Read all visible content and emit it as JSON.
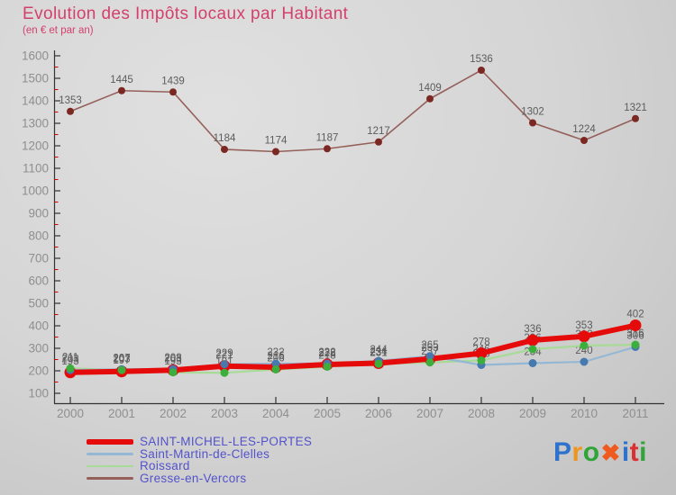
{
  "header": {
    "title": "Evolution des Impôts locaux par Habitant",
    "subtitle": "(en € et par an)"
  },
  "chart_data": {
    "type": "line",
    "x": [
      2000,
      2001,
      2002,
      2003,
      2004,
      2005,
      2006,
      2007,
      2008,
      2009,
      2010,
      2011
    ],
    "series": [
      {
        "name": "SAINT-MICHEL-LES-PORTES",
        "color": "#e60b0b",
        "marker_color": "#e60b0b",
        "width": 6,
        "marker_r": 6.5,
        "values": [
          193,
          197,
          203,
          221,
          216,
          228,
          234,
          253,
          278,
          336,
          353,
          402
        ]
      },
      {
        "name": "Saint-Martin-de-Clelles",
        "color": "#94b8d4",
        "marker_color": "#4679ad",
        "width": 2.2,
        "marker_r": 4.5,
        "values": [
          203,
          207,
          208,
          229,
          232,
          232,
          244,
          265,
          226,
          234,
          240,
          306
        ]
      },
      {
        "name": "Roissard",
        "color": "#a8da98",
        "marker_color": "#3cae3c",
        "width": 2.2,
        "marker_r": 4.5,
        "values": [
          211,
          203,
          193,
          191,
          206,
          218,
          231,
          237,
          246,
          296,
          312,
          316
        ]
      },
      {
        "name": "Gresse-en-Vercors",
        "color": "#95605a",
        "marker_color": "#7c2822",
        "width": 1.6,
        "marker_r": 4,
        "values": [
          1353,
          1445,
          1439,
          1184,
          1174,
          1187,
          1217,
          1409,
          1536,
          1302,
          1224,
          1321
        ]
      }
    ],
    "ylim": [
      100,
      1600
    ],
    "ytick_step": 100,
    "grid": false,
    "legend_position": "bottom-left",
    "axis_color": "#333333",
    "minor_tick_color": "#cc0000",
    "tick_label_color": "#8f8f8f",
    "value_label_color": "#5c5c5c"
  },
  "logo": {
    "letters": [
      {
        "ch": "P",
        "color": "#2d72cc",
        "large": false
      },
      {
        "ch": "r",
        "color": "#f0941e",
        "large": false
      },
      {
        "ch": "o",
        "color": "#2fa437",
        "large": false
      },
      {
        "ch": "✖",
        "color": "#ef5a1e",
        "large": true
      },
      {
        "ch": "i",
        "color": "#2d72cc",
        "large": false
      },
      {
        "ch": "t",
        "color": "#dc2f2f",
        "large": false
      },
      {
        "ch": "i",
        "color": "#2fa437",
        "large": false
      }
    ]
  }
}
